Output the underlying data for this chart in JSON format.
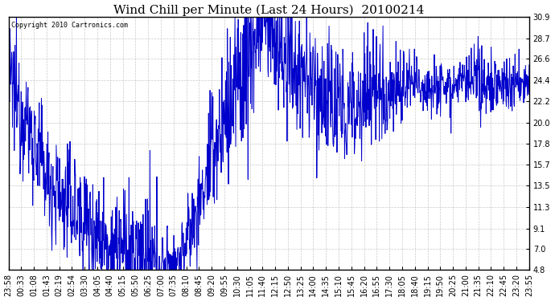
{
  "title": "Wind Chill per Minute (Last 24 Hours)  20100214",
  "copyright": "Copyright 2010 Cartronics.com",
  "yticks": [
    4.8,
    7.0,
    9.1,
    11.3,
    13.5,
    15.7,
    17.8,
    20.0,
    22.2,
    24.4,
    26.6,
    28.7,
    30.9
  ],
  "ymin": 4.8,
  "ymax": 30.9,
  "line_color": "#0000cc",
  "bg_color": "#ffffff",
  "plot_bg_color": "#ffffff",
  "grid_color": "#bbbbbb",
  "title_fontsize": 11,
  "tick_fontsize": 7,
  "copyright_fontsize": 6,
  "xtick_labels": [
    "23:58",
    "00:33",
    "01:08",
    "01:43",
    "02:19",
    "02:54",
    "03:30",
    "04:05",
    "04:40",
    "05:15",
    "05:50",
    "06:25",
    "07:00",
    "07:35",
    "08:10",
    "08:45",
    "09:20",
    "09:55",
    "10:30",
    "11:05",
    "11:40",
    "12:15",
    "12:50",
    "13:25",
    "14:00",
    "14:35",
    "15:10",
    "15:45",
    "16:20",
    "16:55",
    "17:30",
    "18:05",
    "18:40",
    "19:15",
    "19:50",
    "20:25",
    "21:00",
    "21:35",
    "22:10",
    "22:45",
    "23:20",
    "23:55"
  ],
  "base_curve": [
    24.0,
    23.2,
    22.0,
    20.5,
    19.0,
    17.5,
    16.0,
    14.5,
    13.5,
    12.5,
    12.0,
    11.5,
    11.0,
    10.5,
    10.0,
    9.5,
    9.0,
    8.5,
    8.0,
    7.5,
    7.0,
    6.8,
    6.5,
    6.2,
    5.9,
    5.6,
    5.3,
    5.0,
    5.0,
    5.2,
    5.5,
    6.0,
    7.0,
    8.5,
    10.0,
    12.0,
    14.0,
    16.0,
    18.0,
    20.0,
    21.5,
    23.0,
    24.5,
    26.0,
    27.5,
    29.0,
    30.5,
    31.0,
    30.0,
    28.5,
    27.0,
    26.0,
    25.5,
    25.0,
    24.5,
    24.0,
    23.5,
    23.0,
    22.5,
    22.0,
    21.5,
    21.0,
    21.5,
    22.0,
    22.5,
    23.0,
    23.2,
    23.3,
    23.4,
    23.5,
    23.5,
    23.6,
    23.7,
    23.8,
    23.9,
    24.0,
    24.0,
    24.0,
    24.0,
    24.0,
    24.0,
    24.0,
    24.0,
    24.0,
    24.0,
    24.0,
    24.0,
    24.0,
    24.0,
    24.0,
    24.0,
    24.0,
    24.0,
    24.0,
    24.0,
    24.0
  ],
  "noise_profile": [
    3.0,
    3.0,
    3.0,
    3.0,
    3.0,
    3.0,
    3.0,
    3.0,
    3.0,
    3.0,
    3.0,
    3.0,
    3.0,
    3.0,
    3.0,
    3.0,
    3.0,
    3.0,
    3.0,
    3.0,
    3.0,
    3.0,
    3.0,
    3.0,
    3.0,
    3.0,
    3.0,
    3.0,
    2.5,
    2.0,
    2.0,
    2.0,
    2.0,
    2.0,
    2.0,
    2.5,
    3.0,
    3.5,
    4.0,
    4.5,
    4.5,
    4.5,
    4.5,
    4.5,
    4.5,
    4.5,
    4.0,
    3.5,
    3.5,
    4.0,
    4.0,
    4.0,
    3.5,
    3.5,
    3.5,
    3.5,
    3.5,
    3.5,
    3.5,
    3.5,
    3.5,
    3.5,
    3.5,
    3.5,
    3.0,
    3.0,
    3.0,
    3.0,
    3.0,
    3.0,
    2.0,
    2.0,
    2.0,
    2.0,
    1.5,
    1.5,
    1.5,
    1.5,
    1.5,
    1.5,
    1.5,
    1.5,
    1.5,
    1.5,
    1.5,
    1.5,
    1.5,
    1.5,
    1.5,
    1.5,
    1.5,
    1.5,
    1.5,
    1.5,
    1.5,
    1.5
  ]
}
